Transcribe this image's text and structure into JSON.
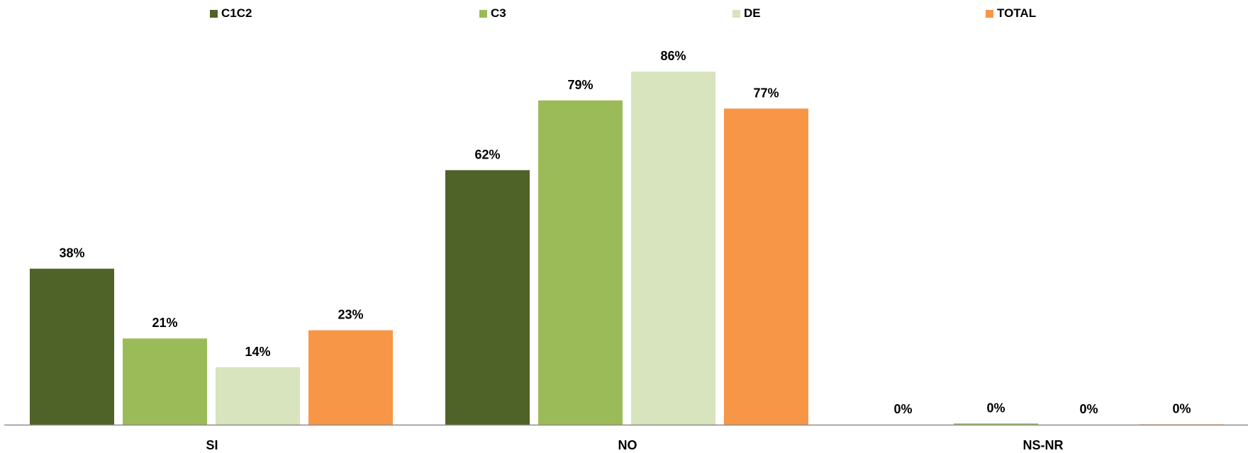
{
  "chart_data": {
    "type": "bar",
    "categories": [
      "SI",
      "NO",
      "NS-NR"
    ],
    "series": [
      {
        "name": "C1C2",
        "color": "#4f6228",
        "values": [
          38,
          62,
          0
        ]
      },
      {
        "name": "C3",
        "color": "#9bbb59",
        "values": [
          21,
          79,
          0.3
        ]
      },
      {
        "name": "DE",
        "color": "#d7e4bd",
        "values": [
          14,
          86,
          0
        ]
      },
      {
        "name": "TOTAL",
        "color": "#f79646",
        "values": [
          23,
          77,
          0.1
        ]
      }
    ],
    "data_labels": [
      [
        "38%",
        "62%",
        "0%"
      ],
      [
        "21%",
        "79%",
        "0%"
      ],
      [
        "14%",
        "86%",
        "0%"
      ],
      [
        "23%",
        "77%",
        "0%"
      ]
    ],
    "ylim": [
      0,
      100
    ],
    "grid": false,
    "legend_position": "top",
    "axis_color": "#8c8c8c"
  }
}
